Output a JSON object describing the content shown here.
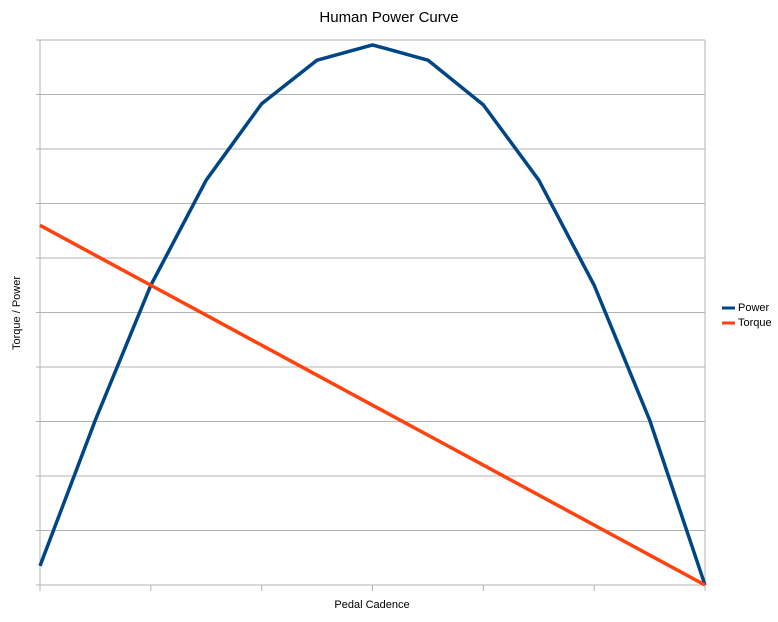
{
  "chart_data": {
    "type": "line",
    "title": "Human Power Curve",
    "x_label": "Pedal Cadence",
    "y_label": "Torque / Power",
    "x": [
      0,
      1,
      2,
      3,
      4,
      5,
      6,
      7,
      8,
      9,
      10,
      11,
      12
    ],
    "series": [
      {
        "name": "Power",
        "color": "#004586",
        "values": [
          0.35,
          3.03,
          5.5,
          7.43,
          8.83,
          9.63,
          9.91,
          9.63,
          8.81,
          7.43,
          5.5,
          3.03,
          0
        ]
      },
      {
        "name": "Torque",
        "color": "#ff420e",
        "values": [
          6.6,
          6.05,
          5.5,
          4.95,
          4.4,
          3.85,
          3.3,
          2.75,
          2.2,
          1.65,
          1.1,
          0.55,
          0
        ]
      }
    ],
    "xlim": [
      0,
      12
    ],
    "xticks": [
      0,
      2,
      4,
      6,
      8,
      10,
      12
    ],
    "ylim": [
      0,
      10
    ],
    "yticks": [
      0,
      1,
      2,
      3,
      4,
      5,
      6,
      7,
      8,
      9,
      10
    ],
    "grid": true,
    "legend": "right"
  }
}
